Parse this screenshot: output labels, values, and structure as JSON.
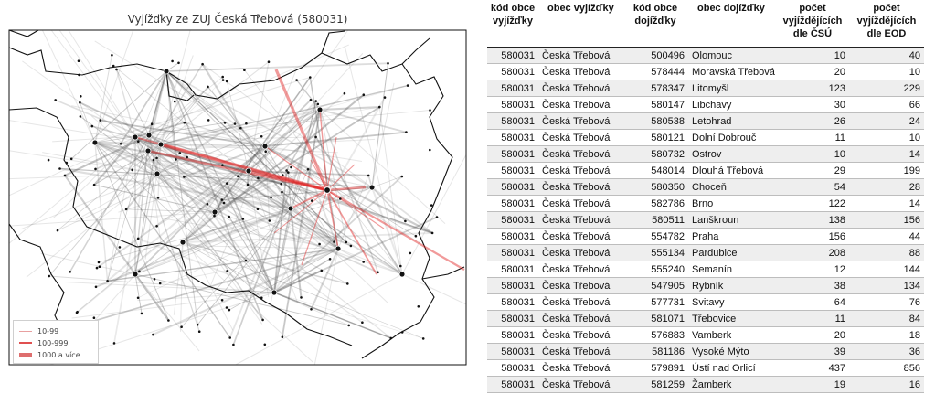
{
  "colors": {
    "flow_red": "#e02020",
    "flow_gray": "#555555",
    "border": "#111111",
    "row_shade": "#eeeeee"
  },
  "chart_data": [
    {
      "type": "map",
      "title": "Vyjížďky ze ZUJ Česká Třebová (580031)",
      "legend_position": "bottom-left",
      "legend": [
        {
          "label": "10-99",
          "color": "#e8a0a0",
          "weight": "thin"
        },
        {
          "label": "100-999",
          "color": "#e05050",
          "weight": "medium"
        },
        {
          "label": "1000 a více",
          "color": "#d03030",
          "weight": "thick"
        }
      ]
    },
    {
      "type": "table",
      "columns": [
        "kód obce vyjížďky",
        "obec vyjížďky",
        "kód obce dojížďky",
        "obec dojížďky",
        "počet vyjíždějících dle ČSÚ",
        "počet vyjíždějících dle EOD"
      ],
      "rows": [
        [
          "580031",
          "Česká Třebová",
          "500496",
          "Olomouc",
          10,
          40
        ],
        [
          "580031",
          "Česká Třebová",
          "578444",
          "Moravská Třebová",
          20,
          10
        ],
        [
          "580031",
          "Česká Třebová",
          "578347",
          "Litomyšl",
          123,
          229
        ],
        [
          "580031",
          "Česká Třebová",
          "580147",
          "Libchavy",
          30,
          66
        ],
        [
          "580031",
          "Česká Třebová",
          "580538",
          "Letohrad",
          26,
          24
        ],
        [
          "580031",
          "Česká Třebová",
          "580121",
          "Dolní Dobrouč",
          11,
          10
        ],
        [
          "580031",
          "Česká Třebová",
          "580732",
          "Ostrov",
          10,
          14
        ],
        [
          "580031",
          "Česká Třebová",
          "548014",
          "Dlouhá Třebová",
          29,
          199
        ],
        [
          "580031",
          "Česká Třebová",
          "580350",
          "Choceň",
          54,
          28
        ],
        [
          "580031",
          "Česká Třebová",
          "582786",
          "Brno",
          122,
          14
        ],
        [
          "580031",
          "Česká Třebová",
          "580511",
          "Lanškroun",
          138,
          156
        ],
        [
          "580031",
          "Česká Třebová",
          "554782",
          "Praha",
          156,
          44
        ],
        [
          "580031",
          "Česká Třebová",
          "555134",
          "Pardubice",
          208,
          88
        ],
        [
          "580031",
          "Česká Třebová",
          "555240",
          "Semanín",
          12,
          144
        ],
        [
          "580031",
          "Česká Třebová",
          "547905",
          "Rybník",
          38,
          134
        ],
        [
          "580031",
          "Česká Třebová",
          "577731",
          "Svitavy",
          64,
          76
        ],
        [
          "580031",
          "Česká Třebová",
          "581071",
          "Třebovice",
          11,
          84
        ],
        [
          "580031",
          "Česká Třebová",
          "576883",
          "Vamberk",
          20,
          18
        ],
        [
          "580031",
          "Česká Třebová",
          "581186",
          "Vysoké Mýto",
          39,
          36
        ],
        [
          "580031",
          "Česká Třebová",
          "579891",
          "Ústí nad Orlicí",
          437,
          856
        ],
        [
          "580031",
          "Česká Třebová",
          "581259",
          "Žamberk",
          19,
          16
        ]
      ]
    }
  ]
}
